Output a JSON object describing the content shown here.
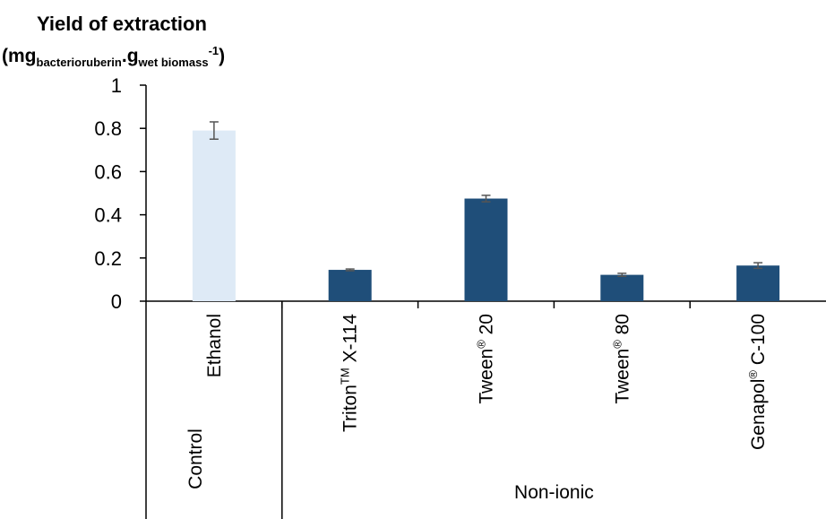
{
  "chart_data": {
    "type": "bar",
    "ylabel": {
      "line1": "Yield of extraction",
      "open_paren": "(mg",
      "sub1": "bacterioruberin",
      "dot": ".g",
      "sub2": "wet biomass",
      "sup": "-1",
      "close_paren": ")"
    },
    "ylim": [
      0,
      1
    ],
    "yticks": [
      "0",
      "0.2",
      "0.4",
      "0.6",
      "0.8",
      "1"
    ],
    "grid": false,
    "categories": [
      {
        "label": "Ethanol",
        "sup": ""
      },
      {
        "label": "Triton",
        "sup": "TM",
        "suffix": " X-114"
      },
      {
        "label": "Tween",
        "sup": "®",
        "suffix": " 20"
      },
      {
        "label": "Tween",
        "sup": "®",
        "suffix": " 80"
      },
      {
        "label": "Genapol",
        "sup": "®",
        "suffix": " C-100"
      }
    ],
    "values": [
      0.79,
      0.145,
      0.475,
      0.122,
      0.165
    ],
    "errors": [
      0.04,
      0.004,
      0.015,
      0.007,
      0.013
    ],
    "bar_colors": [
      "#deeaf6",
      "#1f4e79",
      "#1f4e79",
      "#1f4e79",
      "#1f4e79"
    ],
    "groups": [
      {
        "label": "Control",
        "categories": [
          0
        ]
      },
      {
        "label": "Non-ionic",
        "categories": [
          1,
          2,
          3,
          4
        ]
      }
    ],
    "colors": {
      "axis": "#000000",
      "error_bar": "#555555"
    }
  }
}
